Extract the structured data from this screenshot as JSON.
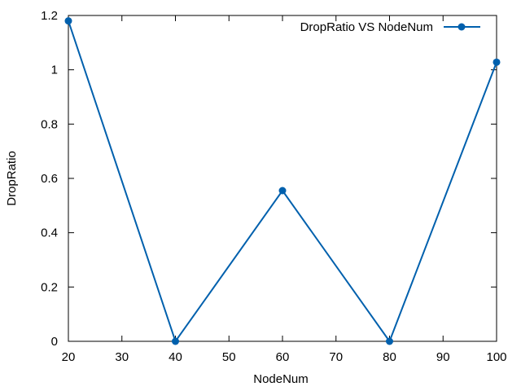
{
  "chart_data": {
    "type": "line",
    "title": "",
    "xlabel": "NodeNum",
    "ylabel": "DropRatio",
    "xlim": [
      20,
      100
    ],
    "ylim": [
      0,
      1.2
    ],
    "x_ticks": [
      "20",
      "30",
      "40",
      "50",
      "60",
      "70",
      "80",
      "90",
      "100"
    ],
    "y_ticks": [
      "0",
      "0.2",
      "0.4",
      "0.6",
      "0.8",
      "1",
      "1.2"
    ],
    "x_tick_values": [
      20,
      30,
      40,
      50,
      60,
      70,
      80,
      90,
      100
    ],
    "y_tick_values": [
      0,
      0.2,
      0.4,
      0.6,
      0.8,
      1.0,
      1.2
    ],
    "grid": false,
    "legend": "top-right",
    "series": [
      {
        "name": "DropRatio VS NodeNum",
        "color": "#0060ad",
        "marker": "circle",
        "x": [
          20,
          40,
          60,
          80,
          100
        ],
        "y": [
          1.18,
          0,
          0.555,
          0,
          1.028
        ]
      }
    ]
  }
}
